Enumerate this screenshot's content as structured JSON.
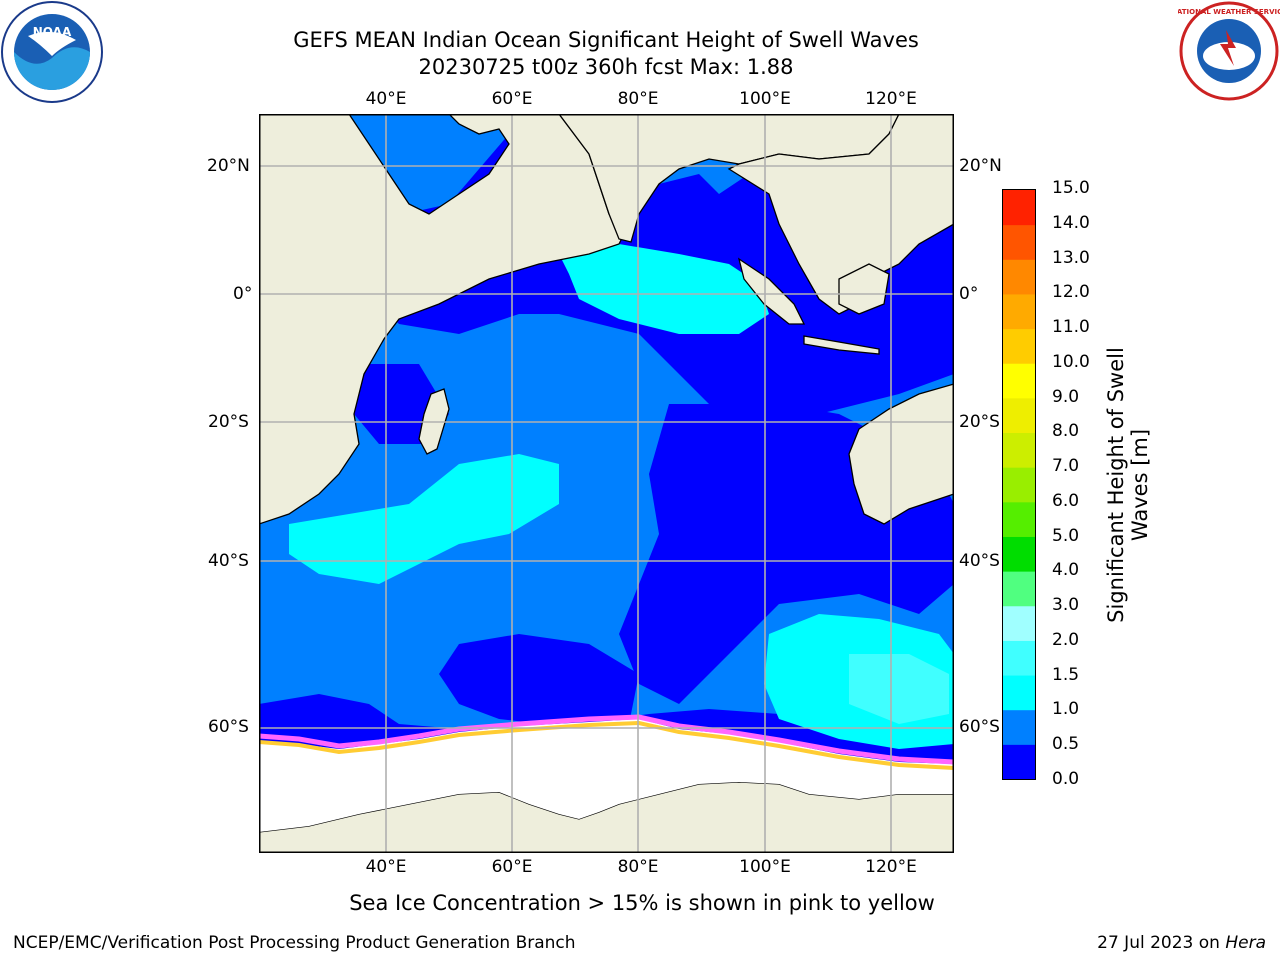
{
  "header": {
    "title_line1": "GEFS MEAN Indian Ocean Significant Height of Swell Waves",
    "title_line2": "20230725 t00z 360h fcst   Max: 1.88"
  },
  "logos": {
    "left": "noaa-logo",
    "left_text": "NOAA",
    "right": "national-weather-service-logo",
    "right_text": "NATIONAL WEATHER SERVICE"
  },
  "map": {
    "lon_labels": [
      "40°E",
      "60°E",
      "80°E",
      "100°E",
      "120°E"
    ],
    "lat_labels": [
      "20°N",
      "0°",
      "20°S",
      "40°S",
      "60°S"
    ],
    "colors": {
      "land": "#eeeedc",
      "deep_blue": "#0000ff",
      "mid_blue": "#0080ff",
      "cyan": "#00ffff",
      "light_cyan": "#40ffff",
      "ice": "#ffffff",
      "ice_edge_pink": "#ff66ff",
      "ice_edge_yellow": "#ffcc33",
      "grid": "#b0b0b0"
    }
  },
  "colorbar": {
    "label": "Significant Height of Swell Waves [m]",
    "ticks": [
      "15.0",
      "14.0",
      "13.0",
      "12.0",
      "11.0",
      "10.0",
      "9.0",
      "8.0",
      "7.0",
      "6.0",
      "5.0",
      "4.0",
      "3.0",
      "2.0",
      "1.5",
      "1.0",
      "0.5",
      "0.0"
    ],
    "colors_bottom_to_top": [
      "#0000ff",
      "#0080ff",
      "#00ffff",
      "#40ffff",
      "#a0ffff",
      "#50ff80",
      "#00dd00",
      "#55ee00",
      "#99ee00",
      "#ccee00",
      "#eeee00",
      "#ffff00",
      "#ffcc00",
      "#ffaa00",
      "#ff8800",
      "#ff5500",
      "#ff2200"
    ]
  },
  "footnote": "Sea Ice Concentration > 15% is shown in pink to yellow",
  "credit": "NCEP/EMC/Verification Post Processing Product Generation Branch",
  "date_prefix": "27 Jul 2023 on ",
  "date_host": "Hera"
}
